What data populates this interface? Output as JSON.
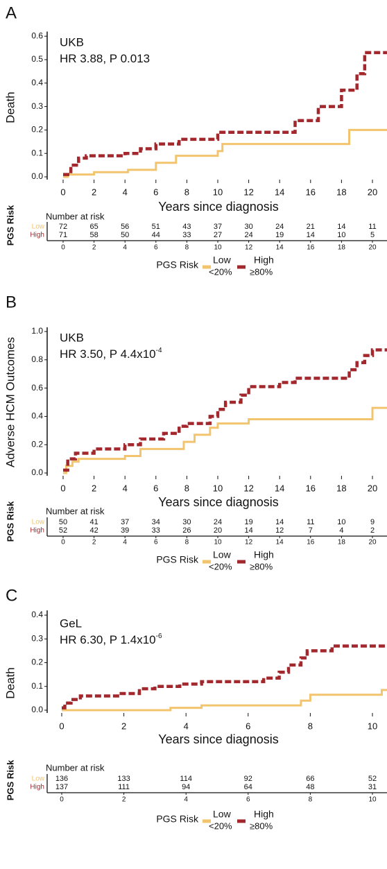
{
  "chart_data": [
    {
      "type": "line",
      "step": true,
      "panel": "A",
      "annotation": "UKB",
      "subtitle": "HR 3.88, P 0.013",
      "y_label": "Death",
      "x_label": "Years since diagnosis",
      "xlim": [
        0,
        21
      ],
      "xticks": [
        0,
        2,
        4,
        6,
        8,
        10,
        12,
        14,
        16,
        18,
        20
      ],
      "ylim": [
        0,
        0.62
      ],
      "yticks": [
        {
          "value": 0,
          "label": "0.0"
        },
        0.1,
        0.2,
        0.3,
        0.4,
        0.5,
        0.6
      ],
      "legend_title": "PGS Risk",
      "series": [
        {
          "name": "Low",
          "range": "<20%",
          "color": "#f2c46d",
          "x": [
            0,
            0.3,
            2,
            4.2,
            6,
            7.3,
            10,
            10.3,
            18.5
          ],
          "values": [
            0,
            0.01,
            0.02,
            0.03,
            0.06,
            0.09,
            0.11,
            0.14,
            0.2
          ]
        },
        {
          "name": "High",
          "range": "≥80%",
          "color": "#a3282d",
          "x": [
            0,
            0.5,
            1,
            1.5,
            4,
            5,
            6,
            7.5,
            10,
            15,
            16.5,
            18,
            19,
            19.5
          ],
          "values": [
            0.01,
            0.05,
            0.08,
            0.09,
            0.1,
            0.12,
            0.14,
            0.16,
            0.19,
            0.24,
            0.3,
            0.37,
            0.44,
            0.53
          ]
        }
      ],
      "risk_table": {
        "label": "PGS Risk",
        "title": "Number at risk",
        "rows": [
          {
            "name": "Low",
            "values": [
              72,
              65,
              56,
              51,
              43,
              37,
              30,
              24,
              21,
              14,
              11
            ]
          },
          {
            "name": "High",
            "values": [
              71,
              58,
              50,
              44,
              33,
              27,
              24,
              19,
              14,
              10,
              5
            ]
          }
        ]
      }
    },
    {
      "type": "line",
      "step": true,
      "panel": "B",
      "annotation": "UKB",
      "subtitle": "HR 3.50, P 4.4x10",
      "subtitle_sup": "-4",
      "y_label": "Adverse HCM Outcomes",
      "x_label": "Years since diagnosis",
      "xlim": [
        0,
        21
      ],
      "xticks": [
        0,
        2,
        4,
        6,
        8,
        10,
        12,
        14,
        16,
        18,
        20
      ],
      "ylim": [
        0,
        1.03
      ],
      "yticks": [
        {
          "value": 0,
          "label": "0.0"
        },
        0.2,
        0.4,
        0.6,
        0.8,
        {
          "value": 1,
          "label": "1.0"
        }
      ],
      "legend_title": "PGS Risk",
      "series": [
        {
          "name": "Low",
          "range": "<20%",
          "color": "#f2c46d",
          "x": [
            0,
            0.2,
            0.6,
            1,
            4,
            5,
            7.8,
            8.5,
            9.5,
            10,
            12,
            20
          ],
          "values": [
            0,
            0.05,
            0.08,
            0.1,
            0.12,
            0.17,
            0.22,
            0.27,
            0.32,
            0.35,
            0.38,
            0.46
          ]
        },
        {
          "name": "High",
          "range": "≥80%",
          "color": "#a3282d",
          "x": [
            0,
            0.3,
            0.8,
            2,
            4,
            5,
            6.5,
            7.5,
            8,
            9.5,
            10,
            10.5,
            11.5,
            12,
            14,
            15,
            18.5,
            19,
            19.5,
            20
          ],
          "values": [
            0.02,
            0.1,
            0.14,
            0.17,
            0.2,
            0.24,
            0.28,
            0.33,
            0.35,
            0.4,
            0.45,
            0.5,
            0.55,
            0.61,
            0.64,
            0.67,
            0.73,
            0.78,
            0.83,
            0.87
          ]
        }
      ],
      "risk_table": {
        "label": "PGS Risk",
        "title": "Number at risk",
        "rows": [
          {
            "name": "Low",
            "values": [
              50,
              41,
              37,
              34,
              30,
              24,
              19,
              14,
              11,
              10,
              9
            ]
          },
          {
            "name": "High",
            "values": [
              52,
              42,
              39,
              33,
              26,
              20,
              14,
              12,
              7,
              4,
              2
            ]
          }
        ]
      }
    },
    {
      "type": "line",
      "step": true,
      "panel": "C",
      "annotation": "GeL",
      "subtitle": "HR 6.30, P 1.4x10",
      "subtitle_sup": "-6",
      "y_label": "Death",
      "x_label": "Years since diagnosis",
      "xlim": [
        0,
        10.5
      ],
      "xticks": [
        0,
        2,
        4,
        6,
        8,
        10
      ],
      "ylim": [
        0,
        0.42
      ],
      "yticks": [
        {
          "value": 0,
          "label": "0.0"
        },
        0.1,
        0.2,
        0.3,
        0.4
      ],
      "legend_title": "PGS Risk",
      "series": [
        {
          "name": "Low",
          "range": "<20%",
          "color": "#f2c46d",
          "x": [
            0,
            3.5,
            4.5,
            7.7,
            8,
            10.3
          ],
          "values": [
            0,
            0.01,
            0.02,
            0.04,
            0.065,
            0.085
          ]
        },
        {
          "name": "High",
          "range": "≥80%",
          "color": "#a3282d",
          "x": [
            0,
            0.1,
            0.3,
            0.6,
            1.8,
            2.5,
            3,
            3.8,
            4.5,
            6.5,
            7,
            7.3,
            7.7,
            7.9,
            8.7
          ],
          "values": [
            0.01,
            0.03,
            0.045,
            0.06,
            0.07,
            0.09,
            0.1,
            0.11,
            0.12,
            0.135,
            0.16,
            0.19,
            0.22,
            0.25,
            0.27
          ]
        }
      ],
      "risk_table": {
        "label": "PGS Risk",
        "title": "Number at risk",
        "rows": [
          {
            "name": "Low",
            "values": [
              136,
              133,
              114,
              92,
              66,
              52
            ]
          },
          {
            "name": "High",
            "values": [
              137,
              111,
              94,
              64,
              48,
              31
            ]
          }
        ]
      }
    }
  ]
}
